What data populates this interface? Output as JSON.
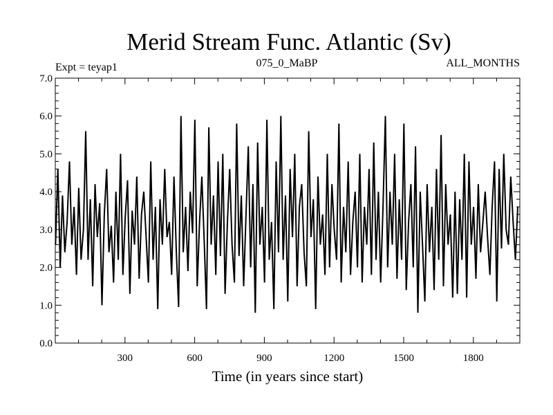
{
  "chart_data": {
    "type": "line",
    "title": "Merid Stream Func. Atlantic (Sv)",
    "subtitle_left": "Expt = teyap1",
    "subtitle_center": "075_0_MaBP",
    "subtitle_right": "ALL_MONTHS",
    "xlabel": "Time (in years since start)",
    "ylabel": "",
    "xlim": [
      0,
      2000
    ],
    "ylim": [
      0.0,
      7.0
    ],
    "x_ticks": [
      300,
      600,
      900,
      1200,
      1500,
      1800
    ],
    "x_tick_labels": [
      "300",
      "600",
      "900",
      "1200",
      "1500",
      "1800"
    ],
    "y_ticks": [
      0.0,
      1.0,
      2.0,
      3.0,
      4.0,
      5.0,
      6.0,
      7.0
    ],
    "y_tick_labels": [
      "0.0",
      "1.0",
      "2.0",
      "3.0",
      "4.0",
      "5.0",
      "6.0",
      "7.0"
    ],
    "grid": false,
    "line_color": "#000000",
    "series": [
      {
        "x_start": 1,
        "x_step": 10,
        "values": [
          2.6,
          4.6,
          2.0,
          3.9,
          2.4,
          3.2,
          4.8,
          2.6,
          3.6,
          1.8,
          4.1,
          2.2,
          3.0,
          5.6,
          2.2,
          3.8,
          1.5,
          4.2,
          2.8,
          3.7,
          1.0,
          3.4,
          4.6,
          2.4,
          3.1,
          1.6,
          4.0,
          2.2,
          5.0,
          1.8,
          3.3,
          4.3,
          1.3,
          3.5,
          2.6,
          4.4,
          1.7,
          3.4,
          4.0,
          2.8,
          1.6,
          4.8,
          2.2,
          3.6,
          0.9,
          3.8,
          2.6,
          4.6,
          2.8,
          3.2,
          1.8,
          4.4,
          2.4,
          0.95,
          6.0,
          2.4,
          3.6,
          1.9,
          4.0,
          2.9,
          5.9,
          1.5,
          3.2,
          4.4,
          2.7,
          0.9,
          5.7,
          2.6,
          3.9,
          1.8,
          4.8,
          2.3,
          5.0,
          1.3,
          3.2,
          4.6,
          2.6,
          1.6,
          5.8,
          2.3,
          3.9,
          1.5,
          3.4,
          5.2,
          2.0,
          4.2,
          0.8,
          5.3,
          2.6,
          3.6,
          1.6,
          5.9,
          2.2,
          3.2,
          0.9,
          4.8,
          2.4,
          6.0,
          2.2,
          3.9,
          1.1,
          4.6,
          2.8,
          5.0,
          1.5,
          3.6,
          4.2,
          2.4,
          1.5,
          5.6,
          2.8,
          3.8,
          0.9,
          4.4,
          2.6,
          3.4,
          1.8,
          5.0,
          2.0,
          4.2,
          3.0,
          2.2,
          5.8,
          1.6,
          3.6,
          2.4,
          4.8,
          1.8,
          3.2,
          4.0,
          2.0,
          5.0,
          1.6,
          3.6,
          2.6,
          4.6,
          1.8,
          5.3,
          2.2,
          4.0,
          1.6,
          3.6,
          6.0,
          2.0,
          4.0,
          2.6,
          5.0,
          1.7,
          3.8,
          2.2,
          5.8,
          1.4,
          3.2,
          4.2,
          2.0,
          5.2,
          0.8,
          4.0,
          2.6,
          1.1,
          4.2,
          2.4,
          3.6,
          1.4,
          4.6,
          2.2,
          5.5,
          1.5,
          4.2,
          2.6,
          3.4,
          1.2,
          4.0,
          1.3,
          3.8,
          2.2,
          5.0,
          1.2,
          4.8,
          2.6,
          3.6,
          1.7,
          4.2,
          2.4,
          3.2,
          4.0,
          2.8,
          1.8,
          3.6,
          4.8,
          1.1,
          4.6,
          2.5,
          5.0,
          3.0,
          2.6,
          4.4,
          3.2,
          2.2,
          3.6
        ]
      }
    ]
  }
}
